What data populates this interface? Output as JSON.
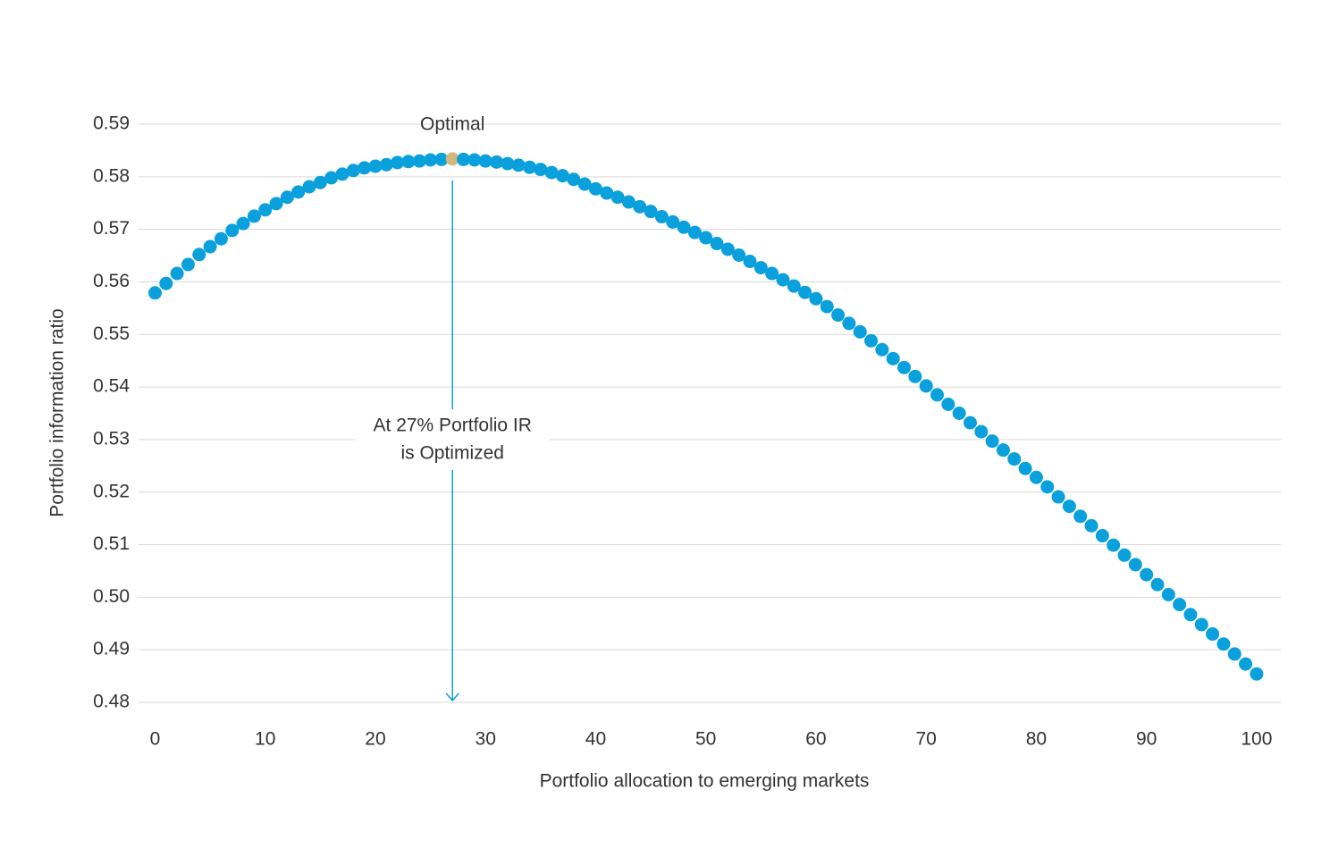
{
  "chart_data": {
    "type": "scatter",
    "x_label": "Portfolio allocation to emerging markets",
    "y_label": "Portfolio information ratio",
    "x": [
      0,
      1,
      2,
      3,
      4,
      5,
      6,
      7,
      8,
      9,
      10,
      11,
      12,
      13,
      14,
      15,
      16,
      17,
      18,
      19,
      20,
      21,
      22,
      23,
      24,
      25,
      26,
      27,
      28,
      29,
      30,
      31,
      32,
      33,
      34,
      35,
      36,
      37,
      38,
      39,
      40,
      41,
      42,
      43,
      44,
      45,
      46,
      47,
      48,
      49,
      50,
      51,
      52,
      53,
      54,
      55,
      56,
      57,
      58,
      59,
      60,
      61,
      62,
      63,
      64,
      65,
      66,
      67,
      68,
      69,
      70,
      71,
      72,
      73,
      74,
      75,
      76,
      77,
      78,
      79,
      80,
      81,
      82,
      83,
      84,
      85,
      86,
      87,
      88,
      89,
      90,
      91,
      92,
      93,
      94,
      95,
      96,
      97,
      98,
      99,
      100
    ],
    "values": [
      0.5579,
      0.5597,
      0.5616,
      0.5633,
      0.5652,
      0.5667,
      0.5682,
      0.5698,
      0.5711,
      0.5725,
      0.5737,
      0.5749,
      0.5761,
      0.5771,
      0.5781,
      0.5789,
      0.5798,
      0.5805,
      0.5812,
      0.5817,
      0.582,
      0.5823,
      0.5827,
      0.5829,
      0.583,
      0.5832,
      0.5833,
      0.5834,
      0.5833,
      0.5832,
      0.583,
      0.5828,
      0.5825,
      0.5822,
      0.5818,
      0.5814,
      0.5808,
      0.5802,
      0.5795,
      0.5786,
      0.5777,
      0.5769,
      0.5761,
      0.5752,
      0.5743,
      0.5734,
      0.5724,
      0.5714,
      0.5704,
      0.5694,
      0.5684,
      0.5673,
      0.5662,
      0.5651,
      0.5639,
      0.5627,
      0.5616,
      0.5604,
      0.5592,
      0.558,
      0.5568,
      0.5553,
      0.5537,
      0.5521,
      0.5505,
      0.5488,
      0.5471,
      0.5454,
      0.5437,
      0.542,
      0.5402,
      0.5385,
      0.5367,
      0.535,
      0.5332,
      0.5315,
      0.5297,
      0.528,
      0.5263,
      0.5245,
      0.5228,
      0.521,
      0.5191,
      0.5173,
      0.5154,
      0.5136,
      0.5117,
      0.5099,
      0.508,
      0.5062,
      0.5043,
      0.5024,
      0.5005,
      0.4986,
      0.4967,
      0.4948,
      0.493,
      0.4911,
      0.4892,
      0.4873,
      0.4854
    ],
    "color": "#0aa0dc",
    "annotations": [
      {
        "text": "Optimal",
        "x": 27,
        "color": "#d2b87e"
      },
      {
        "lines": [
          "At 27% Portfolio IR",
          "is Optimized"
        ],
        "x": 27,
        "color": "#0aa0dc"
      }
    ],
    "xlim": [
      -1.5,
      102.2
    ],
    "ylim": [
      0.48,
      0.59
    ],
    "xticks": [
      0,
      10,
      20,
      30,
      40,
      50,
      60,
      70,
      80,
      90,
      100
    ],
    "yticks": [
      0.48,
      0.49,
      {
        "value": 0.5,
        "label": "0.50"
      },
      0.51,
      0.52,
      0.53,
      0.54,
      0.55,
      0.56,
      0.57,
      0.58,
      0.59
    ],
    "grid": true
  }
}
